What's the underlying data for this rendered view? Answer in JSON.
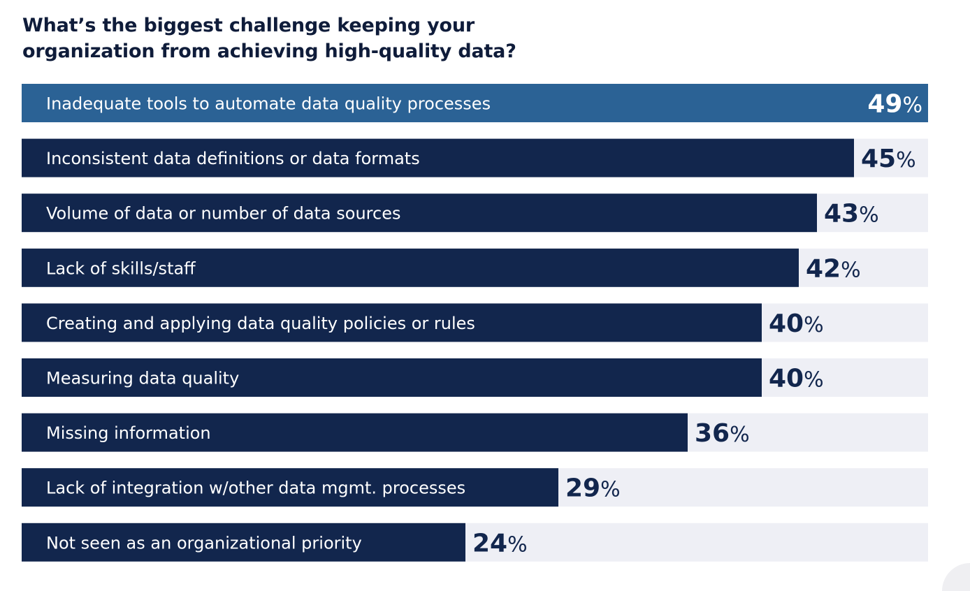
{
  "chart_data": {
    "type": "bar",
    "orientation": "horizontal",
    "title_lines": [
      "What’s the biggest challenge keeping your",
      "organization from achieving high-quality data?"
    ],
    "categories": [
      "Inadequate tools to automate data quality processes",
      "Inconsistent data definitions or data formats",
      "Volume of data or number of data sources",
      "Lack of skills/staff",
      "Creating and applying data quality policies or rules",
      "Measuring data quality",
      "Missing information",
      "Lack of integration w/other data mgmt. processes",
      "Not seen as an organizational priority"
    ],
    "values": [
      49,
      45,
      43,
      42,
      40,
      40,
      36,
      29,
      24
    ],
    "value_suffix": "%",
    "xlim": [
      0,
      49
    ],
    "highlight_index": 0,
    "colors": {
      "bar": "#12264d",
      "highlight_bar": "#2b6295",
      "track": "#eeeff5",
      "value_text": "#12264d",
      "highlight_value_text": "#ffffff",
      "label_text": "#ffffff",
      "title_text": "#0f1c3a"
    }
  }
}
